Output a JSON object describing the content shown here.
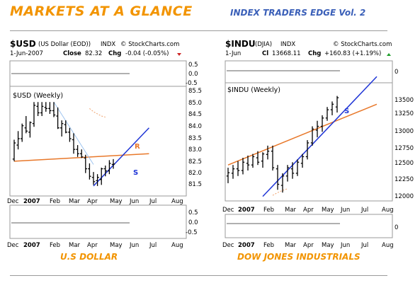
{
  "page": {
    "title": "MARKETS AT A GLANCE",
    "subtitle": "INDEX TRADERS EDGE Vol. 2"
  },
  "colors": {
    "banner_orange": "#f29400",
    "banner_blue": "#3a5fb8",
    "price_bar": "#000000",
    "support_trend": "#1f35d6",
    "resistance_trend": "#e8782a",
    "ma_light": "#f6c7a1"
  },
  "chart_data": [
    {
      "type": "ohlc",
      "symbol": "$USD",
      "name": "(US Dollar (EOD))",
      "exchange": "INDX",
      "source": "© StockCharts.com",
      "date": "1-Jun-2007",
      "close_label": "Close",
      "close": "82.32",
      "chg_label": "Chg",
      "chg": "-0.04 (-0.05%)",
      "chg_direction": "down",
      "inner_label": "$USD (Weekly)",
      "caption": "U.S DOLLAR",
      "x_ticks": [
        "Dec",
        "2007",
        "Feb",
        "Mar",
        "Apr",
        "May",
        "Jun",
        "Jul",
        "Aug"
      ],
      "y_ticks": [
        "85.5",
        "85.0",
        "84.5",
        "84.0",
        "83.5",
        "83.0",
        "82.5",
        "82.0",
        "81.5"
      ],
      "ylim": [
        81.0,
        85.8
      ],
      "top_panel_ticks": [
        "0.5",
        "0.0",
        "-0.5"
      ],
      "bottom_panel_ticks": [
        "0.5",
        "0.0",
        "-0.5"
      ],
      "bars": [
        [
          82.55,
          83.45,
          82.45,
          83.3
        ],
        [
          83.2,
          83.85,
          83.0,
          83.5
        ],
        [
          83.5,
          84.2,
          83.35,
          84.1
        ],
        [
          84.0,
          84.55,
          83.75,
          83.85
        ],
        [
          83.8,
          84.3,
          83.55,
          84.25
        ],
        [
          84.2,
          85.2,
          84.05,
          85.05
        ],
        [
          85.0,
          85.2,
          84.55,
          84.7
        ],
        [
          84.7,
          85.2,
          84.55,
          85.0
        ],
        [
          84.95,
          85.2,
          84.75,
          84.9
        ],
        [
          84.9,
          85.2,
          84.65,
          84.8
        ],
        [
          84.8,
          85.2,
          84.5,
          84.6
        ],
        [
          84.55,
          84.95,
          83.95,
          84.0
        ],
        [
          84.0,
          84.35,
          83.6,
          84.2
        ],
        [
          84.15,
          84.35,
          83.75,
          83.8
        ],
        [
          83.8,
          84.0,
          83.35,
          83.5
        ],
        [
          83.45,
          83.75,
          82.8,
          83.0
        ],
        [
          83.0,
          83.2,
          82.65,
          82.8
        ],
        [
          82.8,
          83.0,
          82.6,
          82.65
        ],
        [
          82.6,
          82.75,
          81.9,
          82.1
        ],
        [
          82.1,
          82.35,
          81.6,
          81.75
        ],
        [
          81.7,
          81.95,
          81.35,
          81.5
        ],
        [
          81.55,
          81.85,
          81.3,
          81.7
        ],
        [
          81.6,
          82.15,
          81.35,
          82.1
        ],
        [
          82.1,
          82.25,
          81.75,
          82.0
        ],
        [
          82.0,
          82.5,
          81.85,
          82.35
        ],
        [
          82.3,
          82.55,
          82.1,
          82.32
        ]
      ],
      "ma": [
        [
          19,
          84.9
        ],
        [
          20,
          84.75
        ],
        [
          21,
          84.65
        ],
        [
          22,
          84.55
        ],
        [
          23,
          84.5
        ]
      ],
      "lines": [
        {
          "label": "R",
          "kind": "resistance",
          "from": [
            0,
            82.45
          ],
          "to": [
            34,
            82.8
          ]
        },
        {
          "label": "S",
          "kind": "support",
          "from": [
            20,
            81.3
          ],
          "to": [
            34,
            84.0
          ]
        },
        {
          "label": "",
          "kind": "light",
          "from": [
            10,
            85.2
          ],
          "to": [
            20,
            82.3
          ]
        }
      ]
    },
    {
      "type": "ohlc",
      "symbol": "$INDU",
      "name": "(DJIA)",
      "exchange": "INDX",
      "source": "© StockCharts.com",
      "date": "1-Jun",
      "close_label": "Cl",
      "close": "13668.11",
      "chg_label": "Chg",
      "chg": "+160.83 (+1.19%)",
      "chg_direction": "up",
      "inner_label": "$INDU (Weekly)",
      "caption": "DOW JONES INDUSTRIALS",
      "x_ticks": [
        "Dec",
        "2007",
        "Feb",
        "Mar",
        "Apr",
        "May",
        "Jun",
        "Jul",
        "Aug"
      ],
      "y_ticks": [
        "13500",
        "13250",
        "13000",
        "12750",
        "12500",
        "12250",
        "12000"
      ],
      "ylim": [
        11850,
        13900
      ],
      "top_panel_ticks": [
        "0"
      ],
      "bottom_panel_ticks": [
        "0"
      ],
      "bars": [
        [
          12250,
          12400,
          12120,
          12310
        ],
        [
          12300,
          12450,
          12200,
          12380
        ],
        [
          12380,
          12520,
          12250,
          12350
        ],
        [
          12350,
          12580,
          12280,
          12500
        ],
        [
          12480,
          12620,
          12350,
          12450
        ],
        [
          12450,
          12650,
          12400,
          12600
        ],
        [
          12580,
          12700,
          12450,
          12500
        ],
        [
          12520,
          12680,
          12400,
          12650
        ],
        [
          12640,
          12800,
          12550,
          12700
        ],
        [
          12700,
          12800,
          12350,
          12400
        ],
        [
          12380,
          12450,
          12000,
          12100
        ],
        [
          12080,
          12300,
          11950,
          12250
        ],
        [
          12250,
          12450,
          12150,
          12400
        ],
        [
          12380,
          12500,
          12200,
          12300
        ],
        [
          12300,
          12550,
          12250,
          12500
        ],
        [
          12480,
          12650,
          12400,
          12600
        ],
        [
          12600,
          12900,
          12550,
          12850
        ],
        [
          12850,
          13150,
          12800,
          13100
        ],
        [
          13080,
          13250,
          12950,
          13150
        ],
        [
          13150,
          13350,
          13050,
          13300
        ],
        [
          13300,
          13500,
          13250,
          13450
        ],
        [
          13450,
          13600,
          13350,
          13550
        ],
        [
          13500,
          13700,
          13400,
          13668
        ]
      ],
      "ma": [
        [
          9,
          11900
        ],
        [
          10,
          11950
        ],
        [
          11,
          11990
        ],
        [
          12,
          12020
        ]
      ],
      "lines": [
        {
          "label": "",
          "kind": "resistance",
          "from": [
            0,
            12450
          ],
          "to": [
            30,
            13550
          ]
        },
        {
          "label": "S",
          "kind": "support",
          "from": [
            7,
            11880
          ],
          "to": [
            30,
            14050
          ]
        }
      ]
    }
  ]
}
